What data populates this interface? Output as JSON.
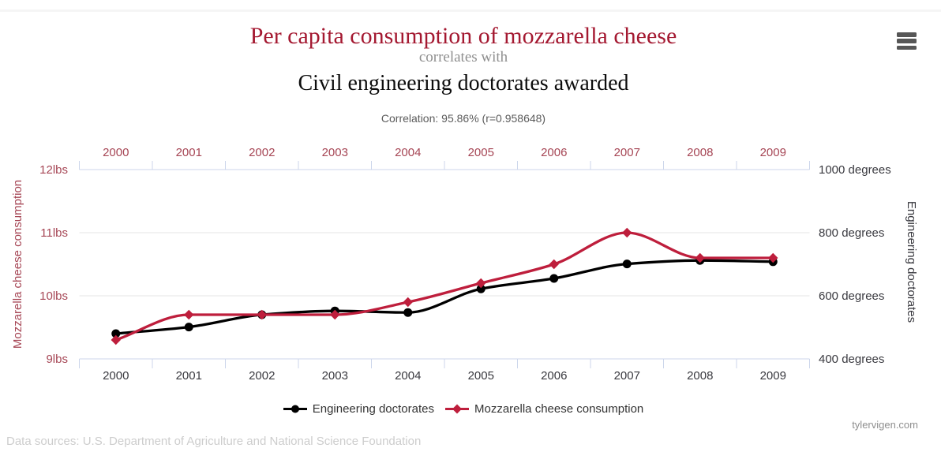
{
  "colors": {
    "title_red": "#a41931",
    "series_red": "#be1e3c",
    "series_black": "#000000",
    "axis_label_red": "#a64655",
    "axis_label_dark": "#39393f",
    "grid": "#e6e6e6",
    "axis_line": "#ccd6eb",
    "menu_gray": "#565656"
  },
  "chart_data": {
    "type": "line",
    "title": "Per capita consumption of mozzarella cheese",
    "connector": "correlates with",
    "title2": "Civil engineering doctorates awarded",
    "subtitle": "Correlation: 95.86% (r=0.958648)",
    "categories": [
      "2000",
      "2001",
      "2002",
      "2003",
      "2004",
      "2005",
      "2006",
      "2007",
      "2008",
      "2009"
    ],
    "series": [
      {
        "name": "Engineering doctorates",
        "axis": "right",
        "marker": "circle",
        "color": "#000000",
        "values": [
          480,
          501,
          540,
          552,
          547,
          622,
          655,
          701,
          712,
          708
        ]
      },
      {
        "name": "Mozzarella cheese consumption",
        "axis": "left",
        "marker": "diamond",
        "color": "#be1e3c",
        "values": [
          9.3,
          9.7,
          9.7,
          9.7,
          9.9,
          10.2,
          10.5,
          11,
          10.6,
          10.6
        ]
      }
    ],
    "axes": {
      "left": {
        "title": "Mozzarella cheese consumption",
        "range": [
          9,
          12
        ],
        "ticks": [
          {
            "label": "9lbs",
            "value": 9
          },
          {
            "label": "10lbs",
            "value": 10
          },
          {
            "label": "11lbs",
            "value": 11
          },
          {
            "label": "12lbs",
            "value": 12
          }
        ]
      },
      "right": {
        "title": "Engineering doctorates",
        "range": [
          400,
          1000
        ],
        "ticks": [
          {
            "label": "400 degrees",
            "value": 400
          },
          {
            "label": "600 degrees",
            "value": 600
          },
          {
            "label": "800 degrees",
            "value": 800
          },
          {
            "label": "1000 degrees",
            "value": 1000
          }
        ]
      },
      "x": {
        "top_labels": true,
        "bottom_labels": true
      }
    },
    "grid": true,
    "legend_position": "bottom"
  },
  "menu": {
    "tooltip": "Chart context menu"
  },
  "footer": {
    "sources": "Data sources: U.S. Department of Agriculture and National Science Foundation",
    "site": "tylervigen.com"
  }
}
